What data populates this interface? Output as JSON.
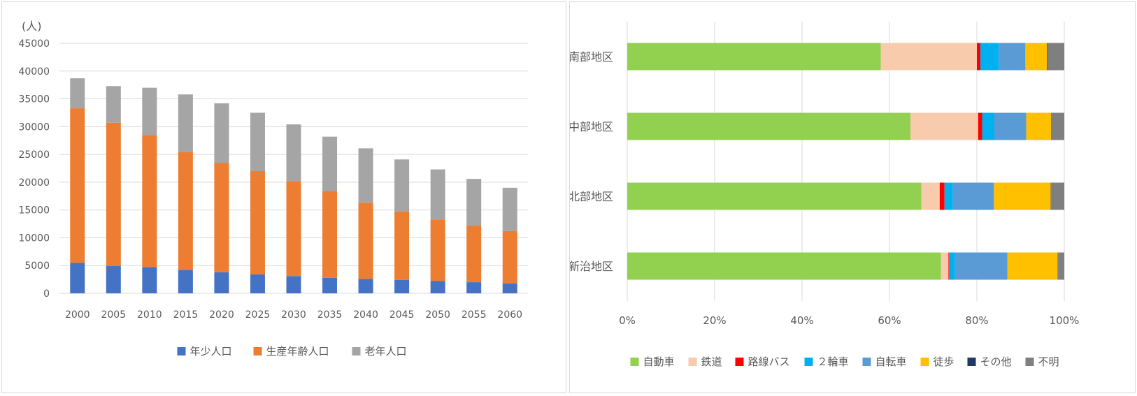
{
  "chart_data": [
    {
      "type": "bar",
      "stacked": true,
      "unit_label": "(人)",
      "title": "",
      "xlabel": "",
      "ylabel": "",
      "categories": [
        "2000",
        "2005",
        "2010",
        "2015",
        "2020",
        "2025",
        "2030",
        "2035",
        "2040",
        "2045",
        "2050",
        "2055",
        "2060"
      ],
      "ylim": [
        0,
        45000
      ],
      "yticks": [
        0,
        5000,
        10000,
        15000,
        20000,
        25000,
        30000,
        35000,
        40000,
        45000
      ],
      "grid": true,
      "legend_position": "bottom",
      "series": [
        {
          "name": "年少人口",
          "color": "#4472c4",
          "values": [
            5500,
            4900,
            4700,
            4200,
            3800,
            3400,
            3100,
            2800,
            2600,
            2400,
            2200,
            2000,
            1800
          ]
        },
        {
          "name": "生産年齢人口",
          "color": "#ed7d31",
          "values": [
            27800,
            25800,
            23800,
            21200,
            19700,
            18600,
            17100,
            15600,
            13700,
            12300,
            11000,
            10200,
            9400
          ]
        },
        {
          "name": "老年人口",
          "color": "#a5a5a5",
          "values": [
            5400,
            6600,
            8500,
            10400,
            10700,
            10500,
            10200,
            9800,
            9800,
            9400,
            9100,
            8400,
            7800
          ]
        }
      ]
    },
    {
      "type": "bar",
      "orientation": "horizontal",
      "stacked_percent": true,
      "title": "",
      "xlabel": "",
      "ylabel": "",
      "categories": [
        "南部地区",
        "中部地区",
        "北部地区",
        "新治地区"
      ],
      "xlim": [
        0,
        100
      ],
      "xticks": [
        "0%",
        "20%",
        "40%",
        "60%",
        "80%",
        "100%"
      ],
      "grid": true,
      "legend_position": "bottom",
      "series": [
        {
          "name": "自動車",
          "color": "#92d050",
          "values": [
            58,
            64.8,
            67.3,
            71.8
          ]
        },
        {
          "name": "鉄道",
          "color": "#f8cbad",
          "values": [
            22,
            15.5,
            4.2,
            1.7
          ]
        },
        {
          "name": "路線バス",
          "color": "#ff0000",
          "values": [
            0.8,
            0.9,
            1.1,
            0.1
          ]
        },
        {
          "name": "２輪車",
          "color": "#00b0f0",
          "values": [
            4.2,
            2.8,
            1.9,
            1.4
          ]
        },
        {
          "name": "自転車",
          "color": "#5b9bd5",
          "values": [
            6.1,
            7.3,
            9.4,
            12.0
          ]
        },
        {
          "name": "徒歩",
          "color": "#ffc000",
          "values": [
            4.9,
            5.7,
            13.0,
            11.5
          ]
        },
        {
          "name": "その他",
          "color": "#1f3864",
          "values": [
            0.1,
            0.1,
            0.1,
            0.1
          ]
        },
        {
          "name": "不明",
          "color": "#7f7f7f",
          "values": [
            3.9,
            2.9,
            3.0,
            1.4
          ]
        }
      ]
    }
  ]
}
